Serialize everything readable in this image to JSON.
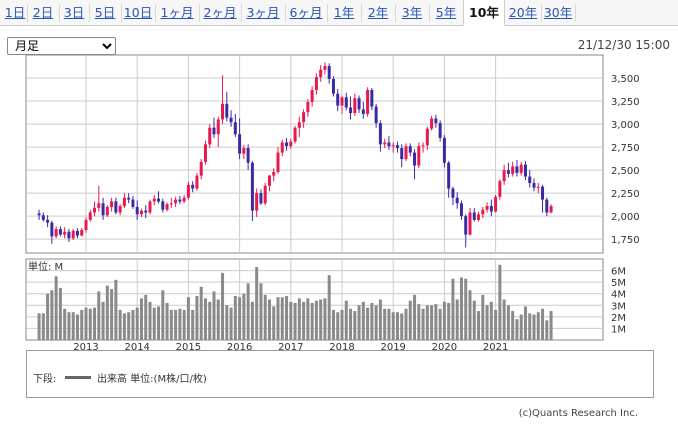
{
  "tabs": [
    {
      "label": "1日"
    },
    {
      "label": "2日"
    },
    {
      "label": "3日"
    },
    {
      "label": "5日"
    },
    {
      "label": "10日"
    },
    {
      "label": "1ヶ月"
    },
    {
      "label": "2ヶ月"
    },
    {
      "label": "3ヶ月"
    },
    {
      "label": "6ヶ月"
    },
    {
      "label": "1年"
    },
    {
      "label": "2年"
    },
    {
      "label": "3年"
    },
    {
      "label": "5年"
    },
    {
      "label": "10年"
    },
    {
      "label": "20年"
    },
    {
      "label": "30年"
    }
  ],
  "active_tab": "10年",
  "period_select": {
    "value": "月足",
    "options": [
      "月足"
    ]
  },
  "timestamp": "21/12/30 15:00",
  "volume_unit_label": "単位: M",
  "legend": {
    "prefix": "下段:",
    "label": "出来高 単位:(M株/口/枚)",
    "color": "#666666"
  },
  "copyright": "(c)Quants Research Inc.",
  "colors": {
    "up": "#e8194f",
    "down": "#3b2aa6",
    "volume": "#8a8a8a",
    "grid": "#cccccc"
  },
  "chart_data": {
    "type": "candlestick",
    "interval": "monthly",
    "x_tick_labels": [
      "2013",
      "2014",
      "2015",
      "2016",
      "2017",
      "2018",
      "2019",
      "2020",
      "2021"
    ],
    "price_axis": {
      "ylim": [
        1600,
        3750
      ],
      "ticks": [
        1750,
        2000,
        2250,
        2500,
        2750,
        3000,
        3250,
        3500
      ],
      "tick_labels": [
        "1,750",
        "2,000",
        "2,250",
        "2,500",
        "2,750",
        "3,000",
        "3,250",
        "3,500"
      ]
    },
    "volume_axis": {
      "ylim": [
        0,
        7
      ],
      "ticks": [
        1,
        2,
        3,
        4,
        5,
        6
      ],
      "tick_labels": [
        "1M",
        "2M",
        "3M",
        "4M",
        "5M",
        "6M"
      ]
    },
    "ohlc_start": "2012-02",
    "ohlc": [
      [
        2030,
        2070,
        1960,
        2010
      ],
      [
        2010,
        2040,
        1940,
        1960
      ],
      [
        1960,
        2010,
        1880,
        1930
      ],
      [
        1930,
        1950,
        1700,
        1780
      ],
      [
        1780,
        1890,
        1760,
        1860
      ],
      [
        1860,
        1890,
        1780,
        1800
      ],
      [
        1800,
        1880,
        1760,
        1830
      ],
      [
        1830,
        1860,
        1720,
        1760
      ],
      [
        1760,
        1860,
        1740,
        1840
      ],
      [
        1840,
        1870,
        1760,
        1790
      ],
      [
        1790,
        1870,
        1780,
        1850
      ],
      [
        1850,
        1990,
        1820,
        1960
      ],
      [
        1960,
        2070,
        1940,
        2040
      ],
      [
        2040,
        2160,
        2000,
        2090
      ],
      [
        2090,
        2330,
        2050,
        2140
      ],
      [
        2140,
        2200,
        1960,
        2010
      ],
      [
        2010,
        2120,
        1990,
        2100
      ],
      [
        2100,
        2200,
        2050,
        2160
      ],
      [
        2160,
        2200,
        2020,
        2040
      ],
      [
        2040,
        2130,
        2010,
        2110
      ],
      [
        2110,
        2250,
        2090,
        2200
      ],
      [
        2200,
        2250,
        2140,
        2180
      ],
      [
        2180,
        2220,
        2080,
        2100
      ],
      [
        2100,
        2170,
        1960,
        2020
      ],
      [
        2020,
        2080,
        1990,
        2060
      ],
      [
        2060,
        2120,
        1980,
        2040
      ],
      [
        2040,
        2180,
        2020,
        2160
      ],
      [
        2160,
        2230,
        2120,
        2190
      ],
      [
        2190,
        2270,
        2140,
        2160
      ],
      [
        2160,
        2190,
        2040,
        2070
      ],
      [
        2070,
        2150,
        2050,
        2130
      ],
      [
        2130,
        2200,
        2090,
        2140
      ],
      [
        2140,
        2210,
        2100,
        2180
      ],
      [
        2180,
        2220,
        2130,
        2160
      ],
      [
        2160,
        2230,
        2140,
        2200
      ],
      [
        2200,
        2370,
        2180,
        2340
      ],
      [
        2340,
        2380,
        2260,
        2300
      ],
      [
        2300,
        2470,
        2280,
        2440
      ],
      [
        2440,
        2620,
        2400,
        2590
      ],
      [
        2590,
        2820,
        2560,
        2780
      ],
      [
        2780,
        3000,
        2740,
        2960
      ],
      [
        2960,
        3070,
        2850,
        2890
      ],
      [
        2890,
        3080,
        2750,
        3050
      ],
      [
        3050,
        3530,
        3000,
        3220
      ],
      [
        3220,
        3350,
        3030,
        3070
      ],
      [
        3070,
        3150,
        2970,
        3020
      ],
      [
        3020,
        3110,
        2860,
        2890
      ],
      [
        2890,
        3060,
        2620,
        2680
      ],
      [
        2680,
        2770,
        2620,
        2740
      ],
      [
        2740,
        2780,
        2500,
        2580
      ],
      [
        2580,
        2600,
        1950,
        2060
      ],
      [
        2060,
        2300,
        1990,
        2250
      ],
      [
        2250,
        2290,
        2120,
        2140
      ],
      [
        2140,
        2360,
        2120,
        2330
      ],
      [
        2330,
        2450,
        2270,
        2440
      ],
      [
        2440,
        2520,
        2380,
        2480
      ],
      [
        2480,
        2750,
        2460,
        2690
      ],
      [
        2690,
        2830,
        2650,
        2800
      ],
      [
        2800,
        2850,
        2710,
        2760
      ],
      [
        2760,
        2840,
        2730,
        2810
      ],
      [
        2810,
        2980,
        2790,
        2960
      ],
      [
        2960,
        3080,
        2860,
        3020
      ],
      [
        3020,
        3160,
        2960,
        3130
      ],
      [
        3130,
        3270,
        3080,
        3240
      ],
      [
        3240,
        3410,
        3190,
        3370
      ],
      [
        3370,
        3550,
        3320,
        3510
      ],
      [
        3510,
        3640,
        3460,
        3590
      ],
      [
        3590,
        3670,
        3540,
        3630
      ],
      [
        3630,
        3660,
        3440,
        3490
      ],
      [
        3490,
        3520,
        3300,
        3330
      ],
      [
        3330,
        3380,
        3140,
        3200
      ],
      [
        3200,
        3310,
        3110,
        3290
      ],
      [
        3290,
        3340,
        3150,
        3180
      ],
      [
        3180,
        3300,
        3050,
        3120
      ],
      [
        3120,
        3330,
        3090,
        3280
      ],
      [
        3280,
        3310,
        3120,
        3160
      ],
      [
        3160,
        3240,
        3060,
        3110
      ],
      [
        3110,
        3400,
        3080,
        3370
      ],
      [
        3370,
        3390,
        3150,
        3190
      ],
      [
        3190,
        3220,
        2960,
        3010
      ],
      [
        3010,
        3040,
        2700,
        2780
      ],
      [
        2780,
        2840,
        2740,
        2800
      ],
      [
        2800,
        2870,
        2720,
        2760
      ],
      [
        2760,
        2800,
        2690,
        2770
      ],
      [
        2770,
        2810,
        2690,
        2740
      ],
      [
        2740,
        2780,
        2530,
        2620
      ],
      [
        2620,
        2790,
        2600,
        2760
      ],
      [
        2760,
        2790,
        2650,
        2690
      ],
      [
        2690,
        2730,
        2400,
        2550
      ],
      [
        2550,
        2800,
        2520,
        2760
      ],
      [
        2760,
        2800,
        2690,
        2770
      ],
      [
        2770,
        2970,
        2720,
        2950
      ],
      [
        2950,
        3090,
        2930,
        3060
      ],
      [
        3060,
        3100,
        2960,
        3010
      ],
      [
        3010,
        3040,
        2810,
        2850
      ],
      [
        2850,
        2880,
        2530,
        2580
      ],
      [
        2580,
        2600,
        2200,
        2300
      ],
      [
        2300,
        2320,
        2120,
        2200
      ],
      [
        2200,
        2260,
        2080,
        2140
      ],
      [
        2140,
        2170,
        1960,
        2000
      ],
      [
        2000,
        2020,
        1660,
        1800
      ],
      [
        1800,
        2090,
        1790,
        2040
      ],
      [
        2040,
        2090,
        1940,
        1960
      ],
      [
        1960,
        2050,
        1940,
        2020
      ],
      [
        2020,
        2100,
        1980,
        2070
      ],
      [
        2070,
        2150,
        2040,
        2110
      ],
      [
        2110,
        2180,
        2000,
        2050
      ],
      [
        2050,
        2230,
        2040,
        2210
      ],
      [
        2210,
        2400,
        2180,
        2380
      ],
      [
        2380,
        2560,
        2340,
        2500
      ],
      [
        2500,
        2580,
        2420,
        2460
      ],
      [
        2460,
        2590,
        2430,
        2540
      ],
      [
        2540,
        2610,
        2430,
        2470
      ],
      [
        2470,
        2590,
        2440,
        2560
      ],
      [
        2560,
        2600,
        2390,
        2430
      ],
      [
        2430,
        2500,
        2310,
        2360
      ],
      [
        2360,
        2410,
        2270,
        2310
      ],
      [
        2310,
        2360,
        2250,
        2320
      ],
      [
        2320,
        2340,
        2040,
        2180
      ],
      [
        2180,
        2200,
        2000,
        2040
      ],
      [
        2040,
        2130,
        2030,
        2110
      ]
    ],
    "volume": [
      2.3,
      2.3,
      4.0,
      4.3,
      5.5,
      4.5,
      2.7,
      2.4,
      2.4,
      2.2,
      2.6,
      2.8,
      2.7,
      2.8,
      4.2,
      3.3,
      4.7,
      4.4,
      5.2,
      2.6,
      2.3,
      2.4,
      2.6,
      2.8,
      3.6,
      3.9,
      3.3,
      2.8,
      2.9,
      4.3,
      3.2,
      2.6,
      2.6,
      2.7,
      2.6,
      3.7,
      2.6,
      3.8,
      4.6,
      3.6,
      3.3,
      4.2,
      3.5,
      5.8,
      3.0,
      2.8,
      3.8,
      3.7,
      4.0,
      4.9,
      3.3,
      6.3,
      4.9,
      3.9,
      3.5,
      2.9,
      3.7,
      3.7,
      3.8,
      3.3,
      3.2,
      3.6,
      3.3,
      3.6,
      3.2,
      3.4,
      3.5,
      3.6,
      5.6,
      2.6,
      2.4,
      2.6,
      3.4,
      2.7,
      2.5,
      3.0,
      3.3,
      2.8,
      3.2,
      3.0,
      3.5,
      2.7,
      2.7,
      2.4,
      2.4,
      2.3,
      2.7,
      3.4,
      3.9,
      3.1,
      2.7,
      3.0,
      3.0,
      3.1,
      2.7,
      3.3,
      3.2,
      5.3,
      3.5,
      5.4,
      5.3,
      4.3,
      3.4,
      2.5,
      3.9,
      3.0,
      3.3,
      2.6,
      6.5,
      3.5,
      3.0,
      2.5,
      1.8,
      2.2,
      2.9,
      2.3,
      2.2,
      2.4,
      2.7,
      1.7,
      2.5
    ]
  }
}
